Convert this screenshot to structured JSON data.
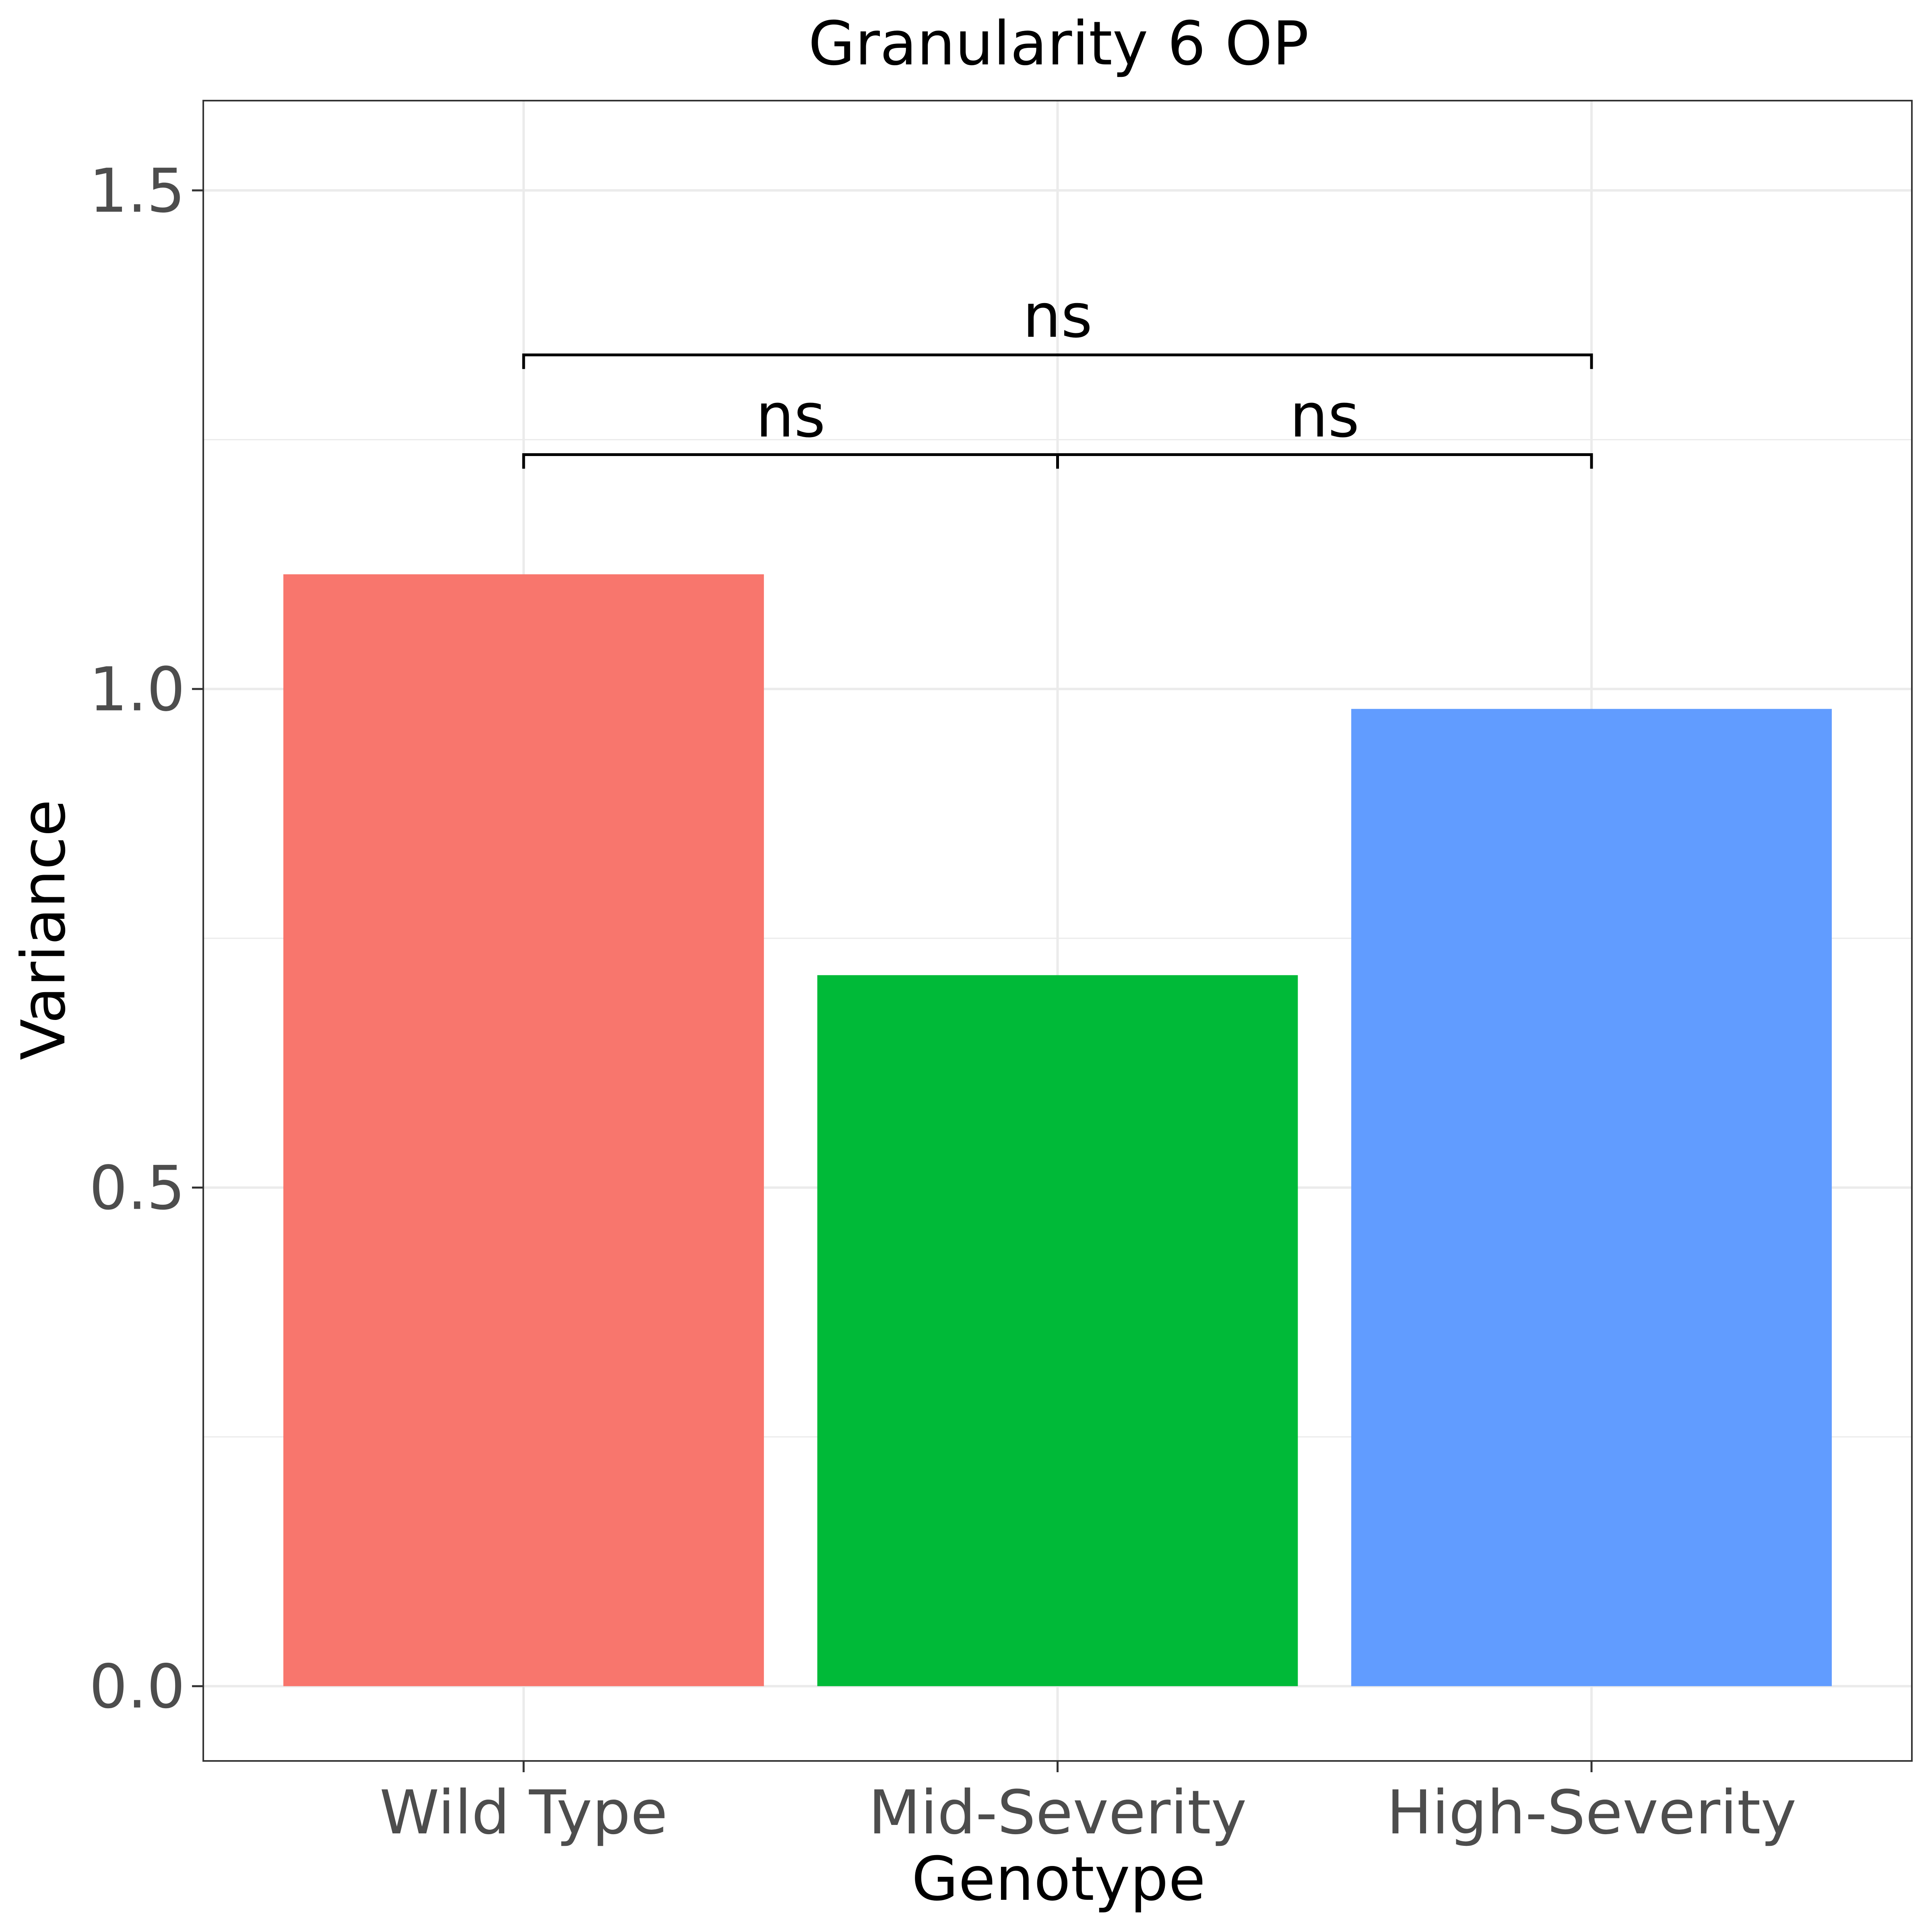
{
  "chart_data": {
    "type": "bar",
    "title": "Granularity 6 OP",
    "xlabel": "Genotype",
    "ylabel": "Variance",
    "categories": [
      "Wild Type",
      "Mid-Severity",
      "High-Severity"
    ],
    "values": [
      1.115,
      0.713,
      0.98
    ],
    "colors": [
      "#F8766D",
      "#00BA38",
      "#619CFF"
    ],
    "ylim": [
      -0.075,
      1.59
    ],
    "yticks": [
      0.0,
      0.5,
      1.0,
      1.5
    ],
    "ytick_labels": [
      "0.0",
      "0.5",
      "1.0",
      "1.5"
    ],
    "grid": true,
    "comparisons": [
      {
        "from": 0,
        "to": 1,
        "label": "ns",
        "y": 1.235
      },
      {
        "from": 1,
        "to": 2,
        "label": "ns",
        "y": 1.235
      },
      {
        "from": 0,
        "to": 2,
        "label": "ns",
        "y": 1.335
      }
    ]
  }
}
